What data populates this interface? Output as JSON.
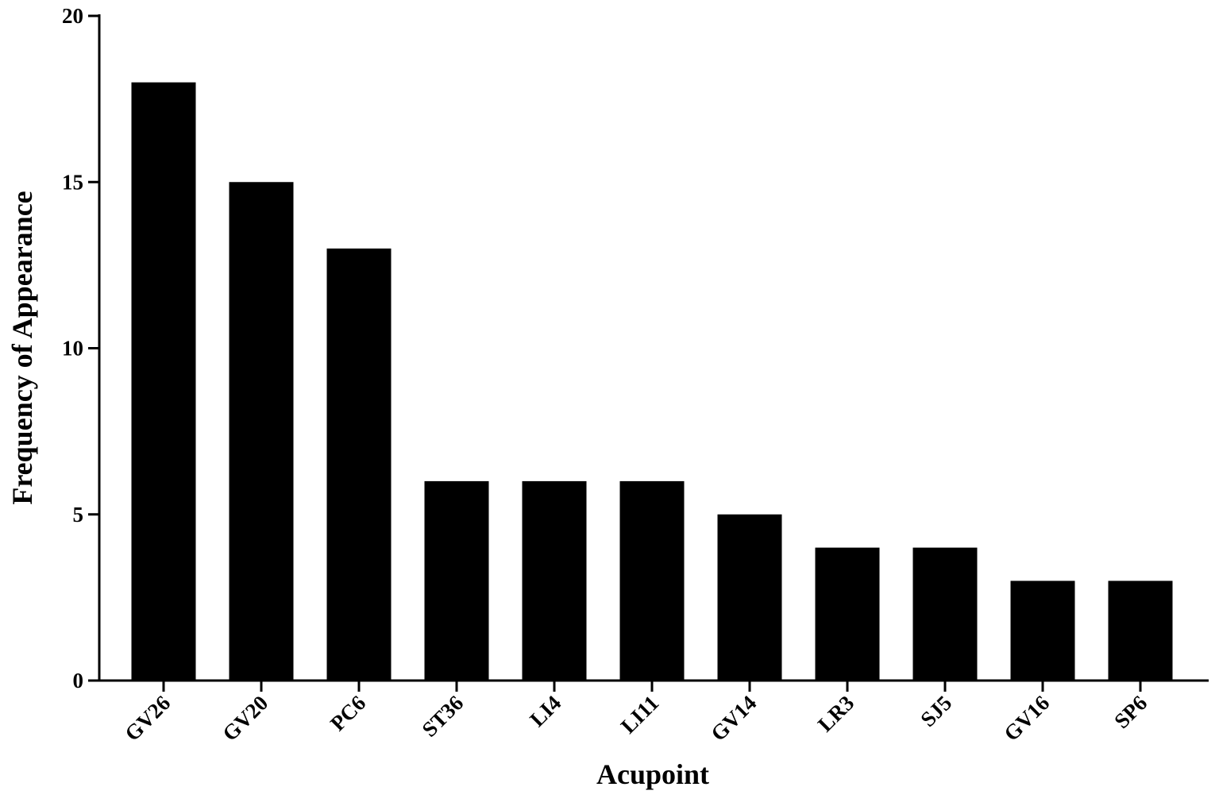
{
  "chart_data": {
    "type": "bar",
    "x_label": "Acupoint",
    "y_label": "Frequency of Appearance",
    "categories": [
      "GV26",
      "GV20",
      "PC6",
      "ST36",
      "LI4",
      "LI11",
      "GV14",
      "LR3",
      "SJ5",
      "GV16",
      "SP6"
    ],
    "values": [
      18,
      15,
      13,
      6,
      6,
      6,
      5,
      4,
      4,
      3,
      3
    ],
    "color": "#000000",
    "ylim": [
      0,
      20
    ],
    "yticks": [
      0,
      5,
      10,
      15,
      20
    ],
    "grid": false
  }
}
